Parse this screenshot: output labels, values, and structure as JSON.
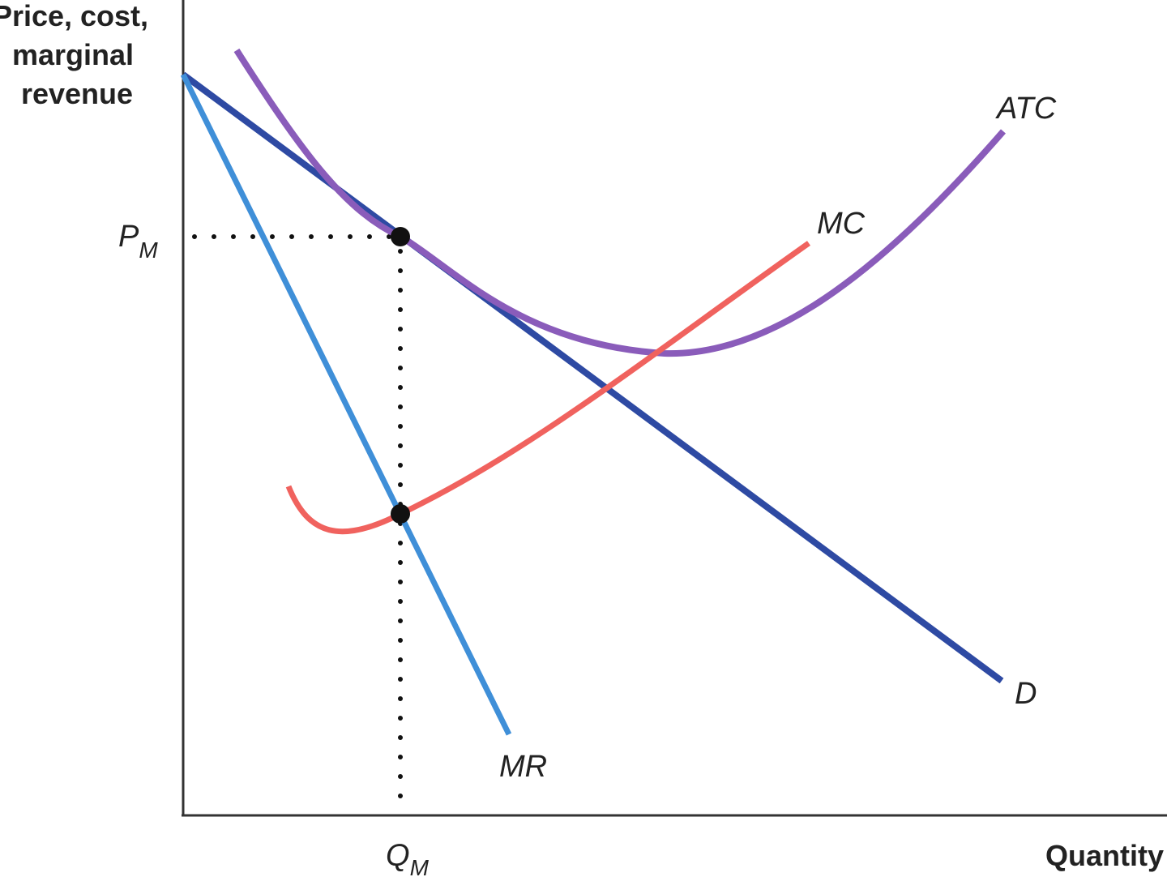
{
  "axes": {
    "y_label": [
      "Price, cost,",
      "marginal",
      "revenue"
    ],
    "x_label": "Quantity"
  },
  "markers": {
    "price": {
      "main": "P",
      "sub": "M"
    },
    "quantity": {
      "main": "Q",
      "sub": "M"
    }
  },
  "curves": {
    "atc": "ATC",
    "mc": "MC",
    "demand": "D",
    "mr": "MR"
  }
}
